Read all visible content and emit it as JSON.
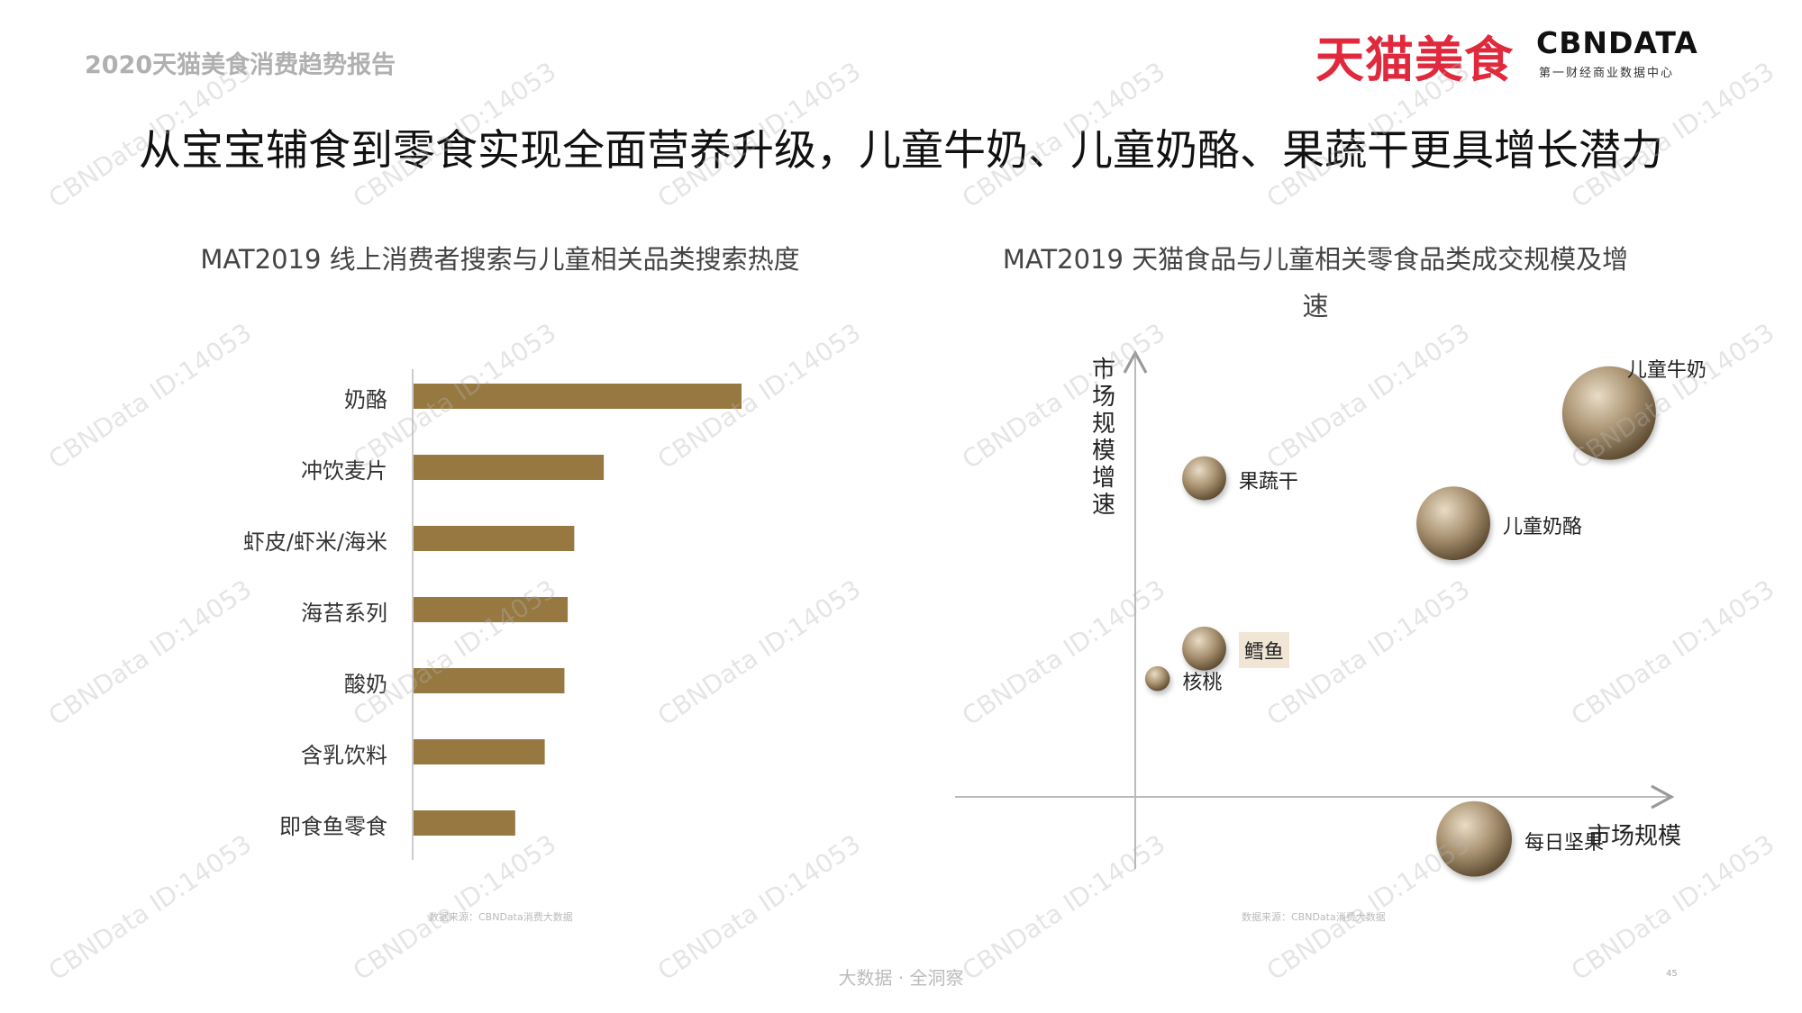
{
  "header": {
    "report_tag": "2020天猫美食消费趋势报告",
    "brand_tmall": "天猫美食",
    "brand_cbn": "CBNDATA",
    "brand_cbn_sub": "第一财经商业数据中心"
  },
  "main_title": "从宝宝辅食到零食实现全面营养升级，儿童牛奶、儿童奶酪、果蔬干更具增长潜力",
  "colors": {
    "bar": "#967840",
    "bubble_dark": "#6e5a3c",
    "bubble_light": "#e9dcc6",
    "highlight_bg": "#f1e6d6"
  },
  "chart_data": [
    {
      "type": "bar",
      "orientation": "horizontal",
      "title": "MAT2019 线上消费者搜索与儿童相关品类搜索热度",
      "categories": [
        "奶酪",
        "冲饮麦片",
        "虾皮/虾米/海米",
        "海苔系列",
        "酸奶",
        "含乳饮料",
        "即食鱼零食"
      ],
      "values": [
        100,
        58,
        49,
        47,
        46,
        40,
        31
      ],
      "xlim": [
        0,
        100
      ]
    },
    {
      "type": "scatter",
      "subtype": "bubble",
      "title": "MAT2019 天猫食品与儿童相关零食品类成交规模及增速",
      "xlabel": "市场规模",
      "ylabel": "市场规模增速",
      "points": [
        {
          "name": "儿童牛奶",
          "x": 88,
          "y": 88,
          "size": 100
        },
        {
          "name": "果蔬干",
          "x": 10,
          "y": 75,
          "size": 22
        },
        {
          "name": "儿童奶酪",
          "x": 58,
          "y": 66,
          "size": 62
        },
        {
          "name": "鳕鱼",
          "x": 10,
          "y": 41,
          "size": 22
        },
        {
          "name": "核桃",
          "x": 1,
          "y": 35,
          "size": 7
        },
        {
          "name": "每日坚果",
          "x": 62,
          "y": 3,
          "size": 65
        }
      ],
      "xlim": [
        -38,
        100
      ],
      "ylim": [
        -3,
        100
      ],
      "highlighted": "鳕鱼"
    }
  ],
  "sources": {
    "left": "数据来源：CBNData消费大数据",
    "right": "数据来源：CBNData消费大数据"
  },
  "footer": {
    "slogan": "大数据 · 全洞察",
    "page": "45"
  },
  "watermark_text": "CBNData ID:14053"
}
